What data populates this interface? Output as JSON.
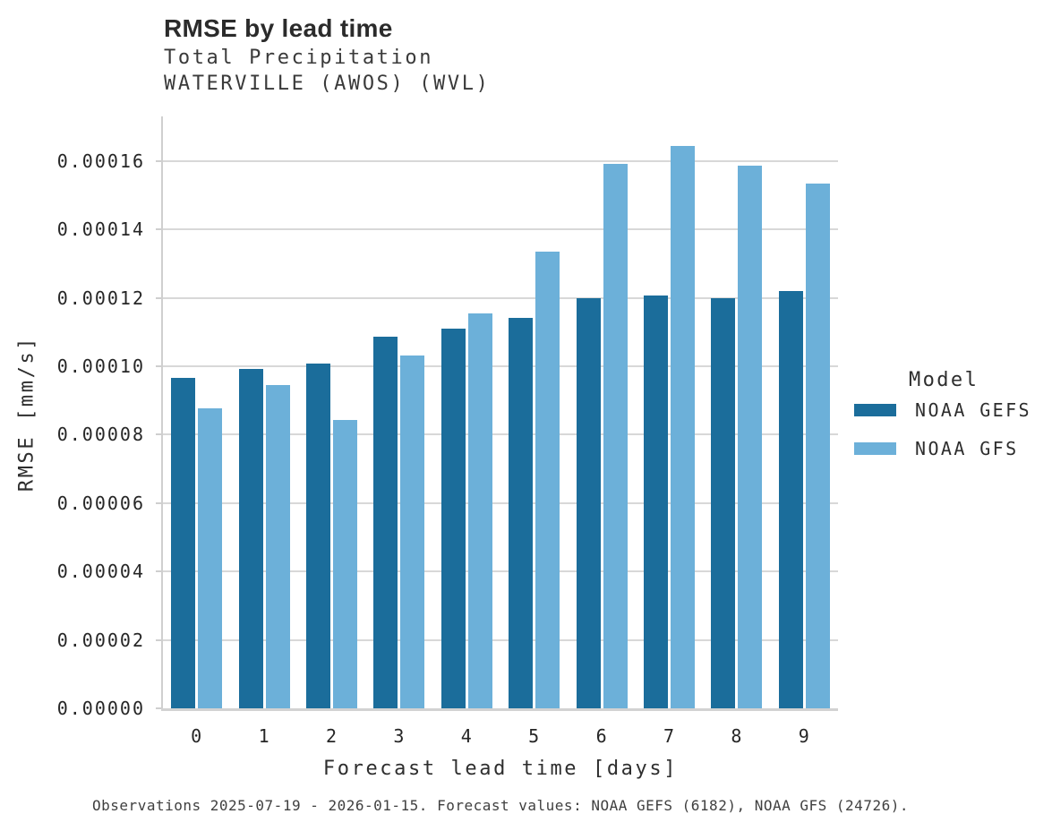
{
  "header": {
    "title": "RMSE by lead time",
    "subtitle1": "Total Precipitation",
    "subtitle2": "WATERVILLE (AWOS) (WVL)"
  },
  "chart_data": {
    "type": "bar",
    "title": "RMSE by lead time",
    "subtitle": "Total Precipitation — WATERVILLE (AWOS) (WVL)",
    "categories": [
      "0",
      "1",
      "2",
      "3",
      "4",
      "5",
      "6",
      "7",
      "8",
      "9"
    ],
    "series": [
      {
        "name": "NOAA GEFS",
        "color": "#1B6D9B",
        "values": [
          9.65e-05,
          9.93e-05,
          0.0001007,
          0.0001086,
          0.000111,
          0.0001142,
          0.0001199,
          0.0001206,
          0.0001199,
          0.0001219
        ]
      },
      {
        "name": "NOAA GFS",
        "color": "#6CB0D9",
        "values": [
          8.77e-05,
          9.45e-05,
          8.43e-05,
          0.0001032,
          0.0001153,
          0.0001336,
          0.0001592,
          0.0001643,
          0.0001585,
          0.0001535
        ]
      }
    ],
    "xlabel": "Forecast lead time [days]",
    "ylabel": "RMSE [mm/s]",
    "ylim": [
      0,
      0.000173
    ],
    "yticks": {
      "values": [
        0,
        2e-05,
        4e-05,
        6e-05,
        8e-05,
        0.0001,
        0.00012,
        0.00014,
        0.00016
      ],
      "labels": [
        "0.00000",
        "0.00002",
        "0.00004",
        "0.00006",
        "0.00008",
        "0.00010",
        "0.00012",
        "0.00014",
        "0.00016"
      ]
    },
    "grid": "horizontal",
    "legend": {
      "title": "Model",
      "position": "right",
      "entries": [
        "NOAA GEFS",
        "NOAA GFS"
      ]
    }
  },
  "footer": {
    "note": "Observations 2025-07-19 - 2026-01-15. Forecast values: NOAA GEFS (6182), NOAA GFS (24726)."
  }
}
